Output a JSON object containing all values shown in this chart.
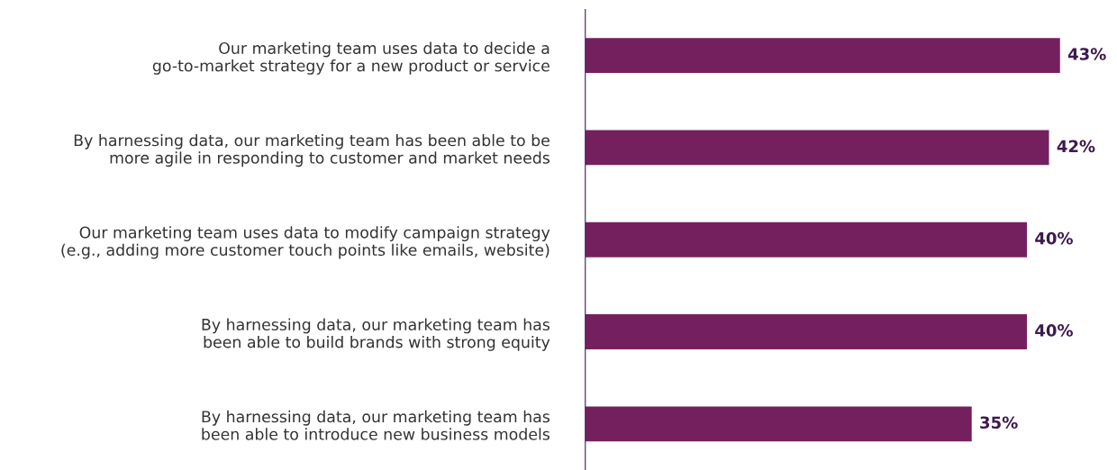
{
  "chart_data": {
    "type": "bar",
    "orientation": "horizontal",
    "categories": [
      "Our marketing team uses data to decide a\ngo-to-market strategy for a new product or service",
      "By harnessing data, our marketing team has been able to be\nmore agile in responding to customer and market needs",
      "Our marketing team uses data to modify campaign strategy\n(e.g., adding more customer touch points like emails, website)",
      "By harnessing data, our marketing team has\nbeen able to build brands with strong equity",
      "By harnessing data, our marketing team has\nbeen able to introduce new business models"
    ],
    "values": [
      43,
      42,
      40,
      40,
      35
    ],
    "value_labels": [
      "43%",
      "42%",
      "40%",
      "40%",
      "35%"
    ],
    "color": "#74205f",
    "grid": false,
    "legend": false
  }
}
